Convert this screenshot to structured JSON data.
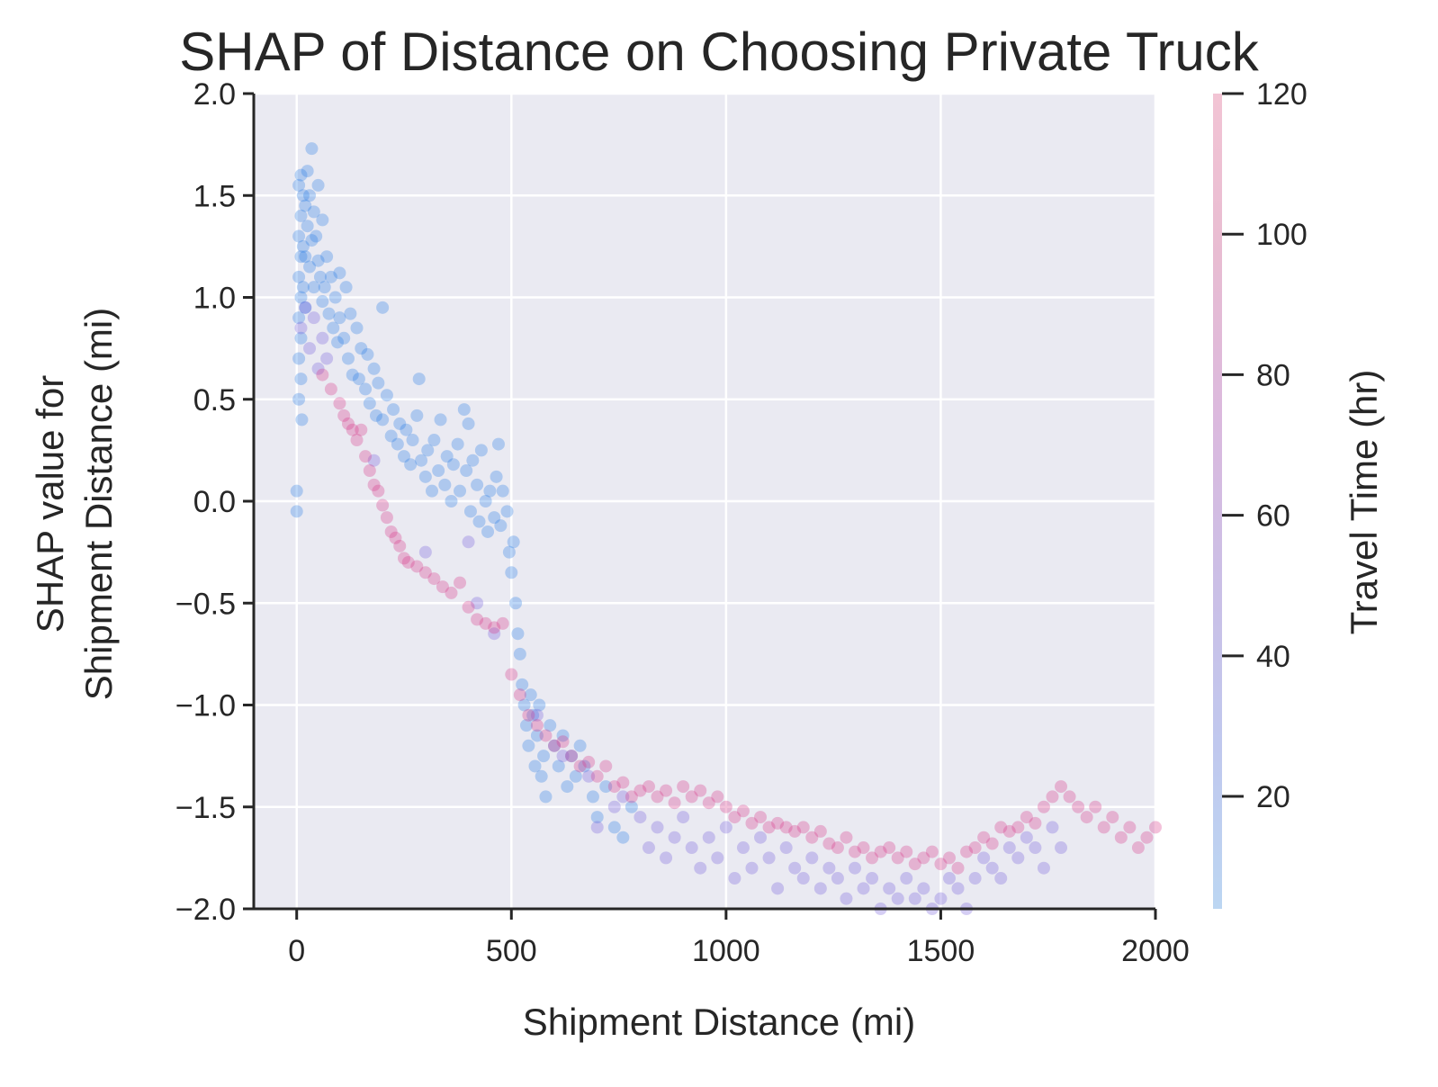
{
  "chart_data": {
    "type": "scatter",
    "title": "SHAP of Distance on Choosing Private Truck",
    "xlabel": "Shipment Distance (mi)",
    "ylabel_line1": "SHAP value for",
    "ylabel_line2": "Shipment Distance (mi)",
    "xlim": [
      -100,
      2000
    ],
    "ylim": [
      -2.0,
      2.0
    ],
    "xticks": [
      0,
      500,
      1000,
      1500,
      2000
    ],
    "xtick_labels": [
      "0",
      "500",
      "1000",
      "1500",
      "2000"
    ],
    "yticks": [
      -2.0,
      -1.5,
      -1.0,
      -0.5,
      0.0,
      0.5,
      1.0,
      1.5,
      2.0
    ],
    "ytick_labels": [
      "−2.0",
      "−1.5",
      "−1.0",
      "−0.5",
      "0.0",
      "0.5",
      "1.0",
      "1.5",
      "2.0"
    ],
    "grid": true,
    "background": "#eaeaf2",
    "colorbar": {
      "label": "Travel Time (hr)",
      "range": [
        4,
        120
      ],
      "ticks": [
        20,
        40,
        60,
        80,
        100,
        120
      ],
      "tick_labels": [
        "20",
        "40",
        "60",
        "80",
        "100",
        "120"
      ],
      "colors": [
        "#bcd6f2",
        "#c0c8ee",
        "#cbbfe6",
        "#dbb9de",
        "#e8bcd2",
        "#f2c4d4"
      ]
    },
    "color_scale": {
      "low": "#1a7ee6",
      "mid": "#8a55d6",
      "high": "#ff1f5a"
    },
    "point_alpha": 0.3,
    "series": [
      {
        "color_value": 10,
        "points": [
          [
            0,
            0.05
          ],
          [
            0,
            -0.05
          ],
          [
            5,
            1.55
          ],
          [
            5,
            1.3
          ],
          [
            5,
            1.1
          ],
          [
            5,
            0.9
          ],
          [
            5,
            0.7
          ],
          [
            5,
            0.5
          ],
          [
            10,
            1.6
          ],
          [
            10,
            1.4
          ],
          [
            10,
            1.2
          ],
          [
            10,
            1.0
          ],
          [
            10,
            0.8
          ],
          [
            10,
            0.6
          ],
          [
            12,
            0.4
          ],
          [
            15,
            1.5
          ],
          [
            15,
            1.25
          ],
          [
            15,
            1.05
          ],
          [
            20,
            1.45
          ],
          [
            20,
            1.2
          ],
          [
            20,
            0.95
          ],
          [
            25,
            1.62
          ],
          [
            25,
            1.35
          ],
          [
            30,
            1.5
          ],
          [
            30,
            1.15
          ],
          [
            35,
            1.73
          ],
          [
            35,
            1.28
          ],
          [
            40,
            1.42
          ],
          [
            40,
            1.05
          ],
          [
            45,
            1.3
          ],
          [
            50,
            1.55
          ],
          [
            50,
            1.18
          ],
          [
            55,
            1.1
          ],
          [
            60,
            1.38
          ],
          [
            60,
            0.98
          ],
          [
            65,
            1.05
          ],
          [
            70,
            1.2
          ],
          [
            75,
            0.92
          ],
          [
            80,
            1.1
          ],
          [
            85,
            0.85
          ],
          [
            90,
            1.0
          ],
          [
            95,
            0.78
          ],
          [
            100,
            1.12
          ],
          [
            100,
            0.9
          ],
          [
            110,
            0.8
          ],
          [
            115,
            1.05
          ],
          [
            120,
            0.7
          ],
          [
            125,
            0.92
          ],
          [
            130,
            0.62
          ],
          [
            140,
            0.85
          ],
          [
            145,
            0.6
          ],
          [
            150,
            0.75
          ],
          [
            160,
            0.55
          ],
          [
            165,
            0.72
          ],
          [
            170,
            0.48
          ],
          [
            180,
            0.65
          ],
          [
            185,
            0.42
          ],
          [
            190,
            0.58
          ],
          [
            200,
            0.95
          ],
          [
            200,
            0.4
          ],
          [
            210,
            0.52
          ],
          [
            220,
            0.32
          ],
          [
            225,
            0.45
          ],
          [
            235,
            0.28
          ],
          [
            240,
            0.38
          ],
          [
            250,
            0.22
          ],
          [
            255,
            0.35
          ],
          [
            265,
            0.18
          ],
          [
            270,
            0.3
          ],
          [
            280,
            0.42
          ],
          [
            285,
            0.6
          ],
          [
            290,
            0.2
          ],
          [
            300,
            0.12
          ],
          [
            305,
            0.25
          ],
          [
            315,
            0.05
          ],
          [
            320,
            0.3
          ],
          [
            330,
            0.15
          ],
          [
            335,
            0.4
          ],
          [
            345,
            0.08
          ],
          [
            350,
            0.22
          ],
          [
            360,
            0.0
          ],
          [
            365,
            0.18
          ],
          [
            375,
            0.28
          ],
          [
            380,
            0.05
          ],
          [
            390,
            0.45
          ],
          [
            395,
            0.15
          ],
          [
            400,
            0.38
          ],
          [
            405,
            -0.05
          ],
          [
            410,
            0.2
          ],
          [
            420,
            0.08
          ],
          [
            425,
            -0.1
          ],
          [
            430,
            0.25
          ],
          [
            440,
            0.0
          ],
          [
            445,
            -0.15
          ],
          [
            450,
            0.05
          ],
          [
            460,
            -0.08
          ],
          [
            465,
            0.12
          ],
          [
            470,
            0.28
          ],
          [
            475,
            -0.12
          ],
          [
            480,
            0.05
          ],
          [
            490,
            -0.05
          ],
          [
            495,
            -0.25
          ],
          [
            500,
            -0.35
          ],
          [
            505,
            -0.2
          ],
          [
            510,
            -0.5
          ],
          [
            515,
            -0.65
          ],
          [
            520,
            -0.75
          ],
          [
            525,
            -0.9
          ],
          [
            530,
            -1.0
          ],
          [
            535,
            -1.1
          ],
          [
            540,
            -1.2
          ],
          [
            545,
            -0.95
          ],
          [
            550,
            -1.05
          ],
          [
            555,
            -1.3
          ],
          [
            560,
            -1.15
          ],
          [
            565,
            -1.0
          ],
          [
            570,
            -1.35
          ],
          [
            575,
            -1.25
          ],
          [
            580,
            -1.45
          ],
          [
            590,
            -1.1
          ],
          [
            600,
            -1.2
          ],
          [
            610,
            -1.3
          ],
          [
            620,
            -1.15
          ],
          [
            630,
            -1.4
          ],
          [
            640,
            -1.25
          ],
          [
            650,
            -1.35
          ],
          [
            660,
            -1.2
          ],
          [
            670,
            -1.3
          ],
          [
            690,
            -1.45
          ],
          [
            700,
            -1.55
          ],
          [
            720,
            -1.4
          ],
          [
            740,
            -1.6
          ],
          [
            760,
            -1.65
          ],
          [
            780,
            -1.5
          ]
        ]
      },
      {
        "color_value": 50,
        "points": [
          [
            10,
            0.85
          ],
          [
            20,
            0.95
          ],
          [
            30,
            0.75
          ],
          [
            40,
            0.9
          ],
          [
            50,
            0.65
          ],
          [
            60,
            0.8
          ],
          [
            70,
            0.7
          ],
          [
            180,
            0.2
          ],
          [
            300,
            -0.25
          ],
          [
            400,
            -0.2
          ],
          [
            420,
            -0.5
          ],
          [
            460,
            -0.65
          ],
          [
            560,
            -1.05
          ],
          [
            620,
            -1.25
          ],
          [
            680,
            -1.35
          ],
          [
            700,
            -1.6
          ],
          [
            740,
            -1.5
          ],
          [
            760,
            -1.45
          ],
          [
            800,
            -1.55
          ],
          [
            820,
            -1.7
          ],
          [
            840,
            -1.6
          ],
          [
            860,
            -1.75
          ],
          [
            880,
            -1.65
          ],
          [
            900,
            -1.55
          ],
          [
            920,
            -1.7
          ],
          [
            940,
            -1.8
          ],
          [
            960,
            -1.65
          ],
          [
            980,
            -1.75
          ],
          [
            1000,
            -1.6
          ],
          [
            1020,
            -1.85
          ],
          [
            1040,
            -1.7
          ],
          [
            1060,
            -1.8
          ],
          [
            1080,
            -1.65
          ],
          [
            1100,
            -1.75
          ],
          [
            1120,
            -1.9
          ],
          [
            1140,
            -1.7
          ],
          [
            1160,
            -1.8
          ],
          [
            1180,
            -1.85
          ],
          [
            1200,
            -1.75
          ],
          [
            1220,
            -1.9
          ],
          [
            1240,
            -1.8
          ],
          [
            1260,
            -1.85
          ],
          [
            1280,
            -1.95
          ],
          [
            1300,
            -1.8
          ],
          [
            1320,
            -1.9
          ],
          [
            1340,
            -1.85
          ],
          [
            1360,
            -2.0
          ],
          [
            1380,
            -1.9
          ],
          [
            1400,
            -1.95
          ],
          [
            1420,
            -1.85
          ],
          [
            1440,
            -1.95
          ],
          [
            1460,
            -1.9
          ],
          [
            1480,
            -2.0
          ],
          [
            1500,
            -1.95
          ],
          [
            1520,
            -1.85
          ],
          [
            1540,
            -1.9
          ],
          [
            1560,
            -2.0
          ],
          [
            1580,
            -1.85
          ],
          [
            1600,
            -1.75
          ],
          [
            1620,
            -1.8
          ],
          [
            1640,
            -1.85
          ],
          [
            1660,
            -1.7
          ],
          [
            1680,
            -1.75
          ],
          [
            1700,
            -1.65
          ],
          [
            1720,
            -1.7
          ],
          [
            1740,
            -1.8
          ],
          [
            1760,
            -1.6
          ],
          [
            1780,
            -1.7
          ]
        ]
      },
      {
        "color_value": 100,
        "points": [
          [
            60,
            0.62
          ],
          [
            80,
            0.55
          ],
          [
            100,
            0.48
          ],
          [
            110,
            0.42
          ],
          [
            120,
            0.38
          ],
          [
            130,
            0.35
          ],
          [
            140,
            0.3
          ],
          [
            150,
            0.35
          ],
          [
            160,
            0.22
          ],
          [
            170,
            0.15
          ],
          [
            180,
            0.08
          ],
          [
            190,
            0.05
          ],
          [
            200,
            -0.02
          ],
          [
            210,
            -0.08
          ],
          [
            220,
            -0.15
          ],
          [
            230,
            -0.18
          ],
          [
            240,
            -0.22
          ],
          [
            250,
            -0.28
          ],
          [
            260,
            -0.3
          ],
          [
            280,
            -0.32
          ],
          [
            300,
            -0.35
          ],
          [
            320,
            -0.38
          ],
          [
            340,
            -0.42
          ],
          [
            360,
            -0.45
          ],
          [
            380,
            -0.4
          ],
          [
            400,
            -0.52
          ],
          [
            420,
            -0.58
          ],
          [
            440,
            -0.6
          ],
          [
            460,
            -0.62
          ],
          [
            480,
            -0.6
          ],
          [
            500,
            -0.85
          ],
          [
            520,
            -0.95
          ],
          [
            540,
            -1.05
          ],
          [
            560,
            -1.1
          ],
          [
            580,
            -1.15
          ],
          [
            600,
            -1.2
          ],
          [
            620,
            -1.18
          ],
          [
            640,
            -1.25
          ],
          [
            660,
            -1.3
          ],
          [
            680,
            -1.28
          ],
          [
            700,
            -1.35
          ],
          [
            720,
            -1.3
          ],
          [
            740,
            -1.4
          ],
          [
            760,
            -1.38
          ],
          [
            780,
            -1.45
          ],
          [
            800,
            -1.42
          ],
          [
            820,
            -1.4
          ],
          [
            840,
            -1.45
          ],
          [
            860,
            -1.42
          ],
          [
            880,
            -1.48
          ],
          [
            900,
            -1.4
          ],
          [
            920,
            -1.45
          ],
          [
            940,
            -1.42
          ],
          [
            960,
            -1.48
          ],
          [
            980,
            -1.45
          ],
          [
            1000,
            -1.5
          ],
          [
            1020,
            -1.55
          ],
          [
            1040,
            -1.52
          ],
          [
            1060,
            -1.58
          ],
          [
            1080,
            -1.55
          ],
          [
            1100,
            -1.6
          ],
          [
            1120,
            -1.58
          ],
          [
            1140,
            -1.6
          ],
          [
            1160,
            -1.62
          ],
          [
            1180,
            -1.6
          ],
          [
            1200,
            -1.65
          ],
          [
            1220,
            -1.62
          ],
          [
            1240,
            -1.68
          ],
          [
            1260,
            -1.7
          ],
          [
            1280,
            -1.65
          ],
          [
            1300,
            -1.72
          ],
          [
            1320,
            -1.7
          ],
          [
            1340,
            -1.75
          ],
          [
            1360,
            -1.72
          ],
          [
            1380,
            -1.7
          ],
          [
            1400,
            -1.75
          ],
          [
            1420,
            -1.72
          ],
          [
            1440,
            -1.78
          ],
          [
            1460,
            -1.75
          ],
          [
            1480,
            -1.72
          ],
          [
            1500,
            -1.78
          ],
          [
            1520,
            -1.75
          ],
          [
            1540,
            -1.8
          ],
          [
            1560,
            -1.72
          ],
          [
            1580,
            -1.7
          ],
          [
            1600,
            -1.65
          ],
          [
            1620,
            -1.68
          ],
          [
            1640,
            -1.6
          ],
          [
            1660,
            -1.62
          ],
          [
            1680,
            -1.6
          ],
          [
            1700,
            -1.55
          ],
          [
            1720,
            -1.58
          ],
          [
            1740,
            -1.5
          ],
          [
            1760,
            -1.45
          ],
          [
            1780,
            -1.4
          ],
          [
            1800,
            -1.45
          ],
          [
            1820,
            -1.5
          ],
          [
            1840,
            -1.55
          ],
          [
            1860,
            -1.5
          ],
          [
            1880,
            -1.6
          ],
          [
            1900,
            -1.55
          ],
          [
            1920,
            -1.65
          ],
          [
            1940,
            -1.6
          ],
          [
            1960,
            -1.7
          ],
          [
            1980,
            -1.65
          ],
          [
            2000,
            -1.6
          ]
        ]
      }
    ]
  }
}
